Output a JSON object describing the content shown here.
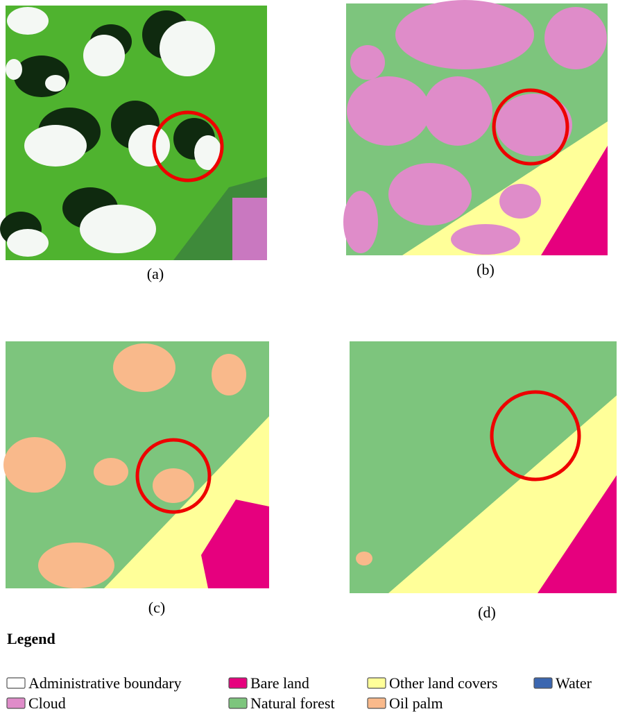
{
  "panels": [
    {
      "caption": "(a)"
    },
    {
      "caption": "(b)"
    },
    {
      "caption": "(c)"
    },
    {
      "caption": "(d)"
    }
  ],
  "legend": {
    "title": "Legend",
    "items": [
      {
        "name": "Administrative boundary",
        "color": "#ffffff"
      },
      {
        "name": "Bare land",
        "color": "#e6007e"
      },
      {
        "name": "Other land covers",
        "color": "#ffff99"
      },
      {
        "name": "Water",
        "color": "#3b66b0"
      },
      {
        "name": "Cloud",
        "color": "#df8cc9"
      },
      {
        "name": "Natural forest",
        "color": "#7dc57d"
      },
      {
        "name": "Oil palm",
        "color": "#f9b98b"
      }
    ]
  }
}
